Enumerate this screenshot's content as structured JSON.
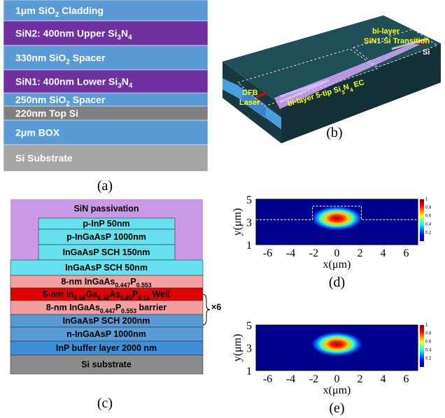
{
  "panel_a": {
    "label": "(a)",
    "layers": [
      [
        "1μm SiO",
        {
          "sub": "2"
        },
        " Cladding"
      ],
      [
        "SiN2: 400nm Upper Si",
        {
          "sub": "3"
        },
        "N",
        {
          "sub": "4"
        }
      ],
      [
        "330nm SiO",
        {
          "sub": "2"
        },
        " Spacer"
      ],
      [
        "SiN1: 400nm Lower Si",
        {
          "sub": "3"
        },
        "N",
        {
          "sub": "4"
        }
      ],
      [
        "250nm SiO",
        {
          "sub": "2"
        },
        " Spacer"
      ],
      [
        "220nm Top Si"
      ],
      [
        "2μm BOX"
      ],
      [
        "Si Substrate"
      ]
    ]
  },
  "panel_b": {
    "label": "(b)",
    "transition": [
      "bi-layer",
      "SiN1-Si Transition"
    ],
    "si": "Si",
    "laser": [
      "DFB",
      "Laser"
    ],
    "ec": [
      "bi-layer 5-tip Si",
      {
        "sub": "3"
      },
      "N",
      {
        "sub": "4"
      },
      " EC"
    ]
  },
  "panel_c": {
    "label": "(c)",
    "repeat": "×6",
    "layers": [
      [
        "SiN passivation"
      ],
      [
        "p-InP 50nm"
      ],
      [
        "p-InGaAsP 1000nm"
      ],
      [
        "InGaAsP SCH 150nm"
      ],
      [
        "InGaAsP SCH 50nm"
      ],
      [
        "8-nm InGaAs",
        {
          "sub": "0.447"
        },
        "P",
        {
          "sub": "0.553"
        }
      ],
      [
        "5-nm In",
        {
          "sub": "0.68"
        },
        "Ga",
        {
          "sub": "0.32"
        },
        "As",
        {
          "sub": "0.89"
        },
        "P",
        {
          "sub": "0.11"
        },
        " Well"
      ],
      [
        "8-nm InGaAs",
        {
          "sub": "0.447"
        },
        "P",
        {
          "sub": "0.553"
        },
        " barrier"
      ],
      [
        "InGaAsP SCH 200nm"
      ],
      [
        "n-InGaAsP 1000nm"
      ],
      [
        "InP buffer layer 2000 nm"
      ],
      [
        "Si substrate"
      ]
    ]
  },
  "plots": [
    {
      "label": "(d)",
      "xlabel": "x(μm)",
      "ylabel": "y(μm)",
      "xlim": [
        -7,
        7
      ],
      "ylim": [
        1,
        5
      ],
      "xticks": [
        -6,
        -4,
        -2,
        0,
        2,
        4,
        6
      ],
      "yticks": [
        1,
        3,
        5
      ],
      "clim": [
        0,
        1
      ],
      "cticks": [
        0.2,
        0.4,
        0.6,
        0.8,
        1
      ]
    },
    {
      "label": "(e)",
      "xlabel": "x(μm)",
      "ylabel": "y(μm)",
      "xlim": [
        -7,
        7
      ],
      "ylim": [
        1,
        5
      ],
      "xticks": [
        -6,
        -4,
        -2,
        0,
        2,
        4,
        6
      ],
      "yticks": [
        1,
        3,
        5
      ],
      "clim": [
        0,
        1
      ],
      "cticks": [
        0.2,
        0.4,
        0.6,
        0.8,
        1
      ]
    }
  ]
}
